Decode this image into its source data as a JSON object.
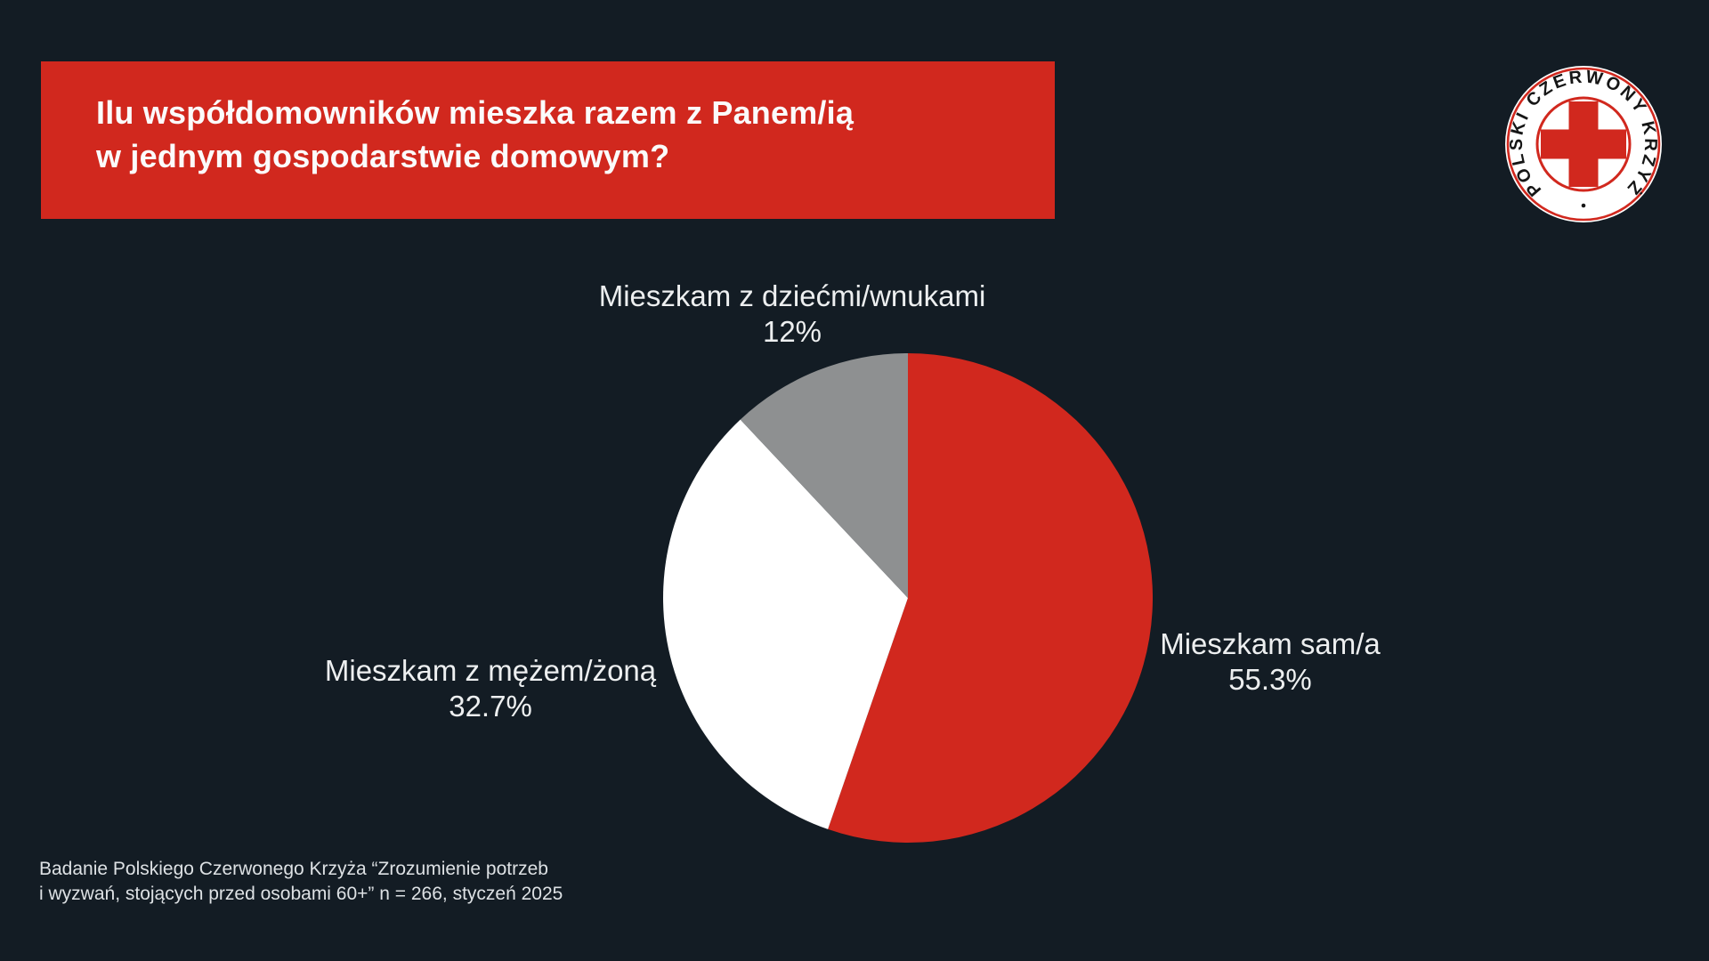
{
  "theme": {
    "accent_red": "#d1281e",
    "background": "#131c24",
    "slice_white": "#ffffff",
    "slice_gray": "#8e9091",
    "text_light": "#edeff0"
  },
  "header": {
    "title_lines": [
      "Ilu współdomowników mieszka razem z Panem/ią",
      "w jednym gospodarstwie domowym?"
    ]
  },
  "logo": {
    "curved_text": "POLSKI  CZERWONY  KRZYŻ",
    "cross_color": "#d1281e",
    "ring_color": "#d1281e",
    "text_color": "#161616",
    "disc_color": "#ffffff"
  },
  "chart_data": {
    "type": "pie",
    "title": "Ilu współdomowników mieszka razem z Panem/ią w jednym gospodarstwie domowym?",
    "start_angle_deg": 0,
    "direction": "clockwise",
    "legend_position": "labels-around-pie",
    "slices": [
      {
        "label": "Mieszkam sam/a",
        "value": 55.3,
        "pct_label": "55.3%",
        "color": "#d1281e"
      },
      {
        "label": "Mieszkam z mężem/żoną",
        "value": 32.7,
        "pct_label": "32.7%",
        "color": "#ffffff"
      },
      {
        "label": "Mieszkam z dziećmi/wnukami",
        "value": 12,
        "pct_label": "12%",
        "color": "#8e9091"
      }
    ]
  },
  "footer": {
    "lines": [
      "Badanie Polskiego Czerwonego Krzyża “Zrozumienie potrzeb",
      "i wyzwań, stojących przed osobami 60+” n = 266, styczeń 2025"
    ]
  }
}
